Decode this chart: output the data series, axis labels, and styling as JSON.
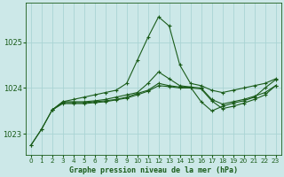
{
  "title": "Graphe pression niveau de la mer (hPa)",
  "bg_color": "#cce8e8",
  "grid_color": "#aad4d4",
  "line_color": "#1a5c1a",
  "text_color": "#1a5c1a",
  "xlim": [
    -0.5,
    23.5
  ],
  "ylim": [
    1022.55,
    1025.85
  ],
  "yticks": [
    1023,
    1024,
    1025
  ],
  "xticks": [
    0,
    1,
    2,
    3,
    4,
    5,
    6,
    7,
    8,
    9,
    10,
    11,
    12,
    13,
    14,
    15,
    16,
    17,
    18,
    19,
    20,
    21,
    22,
    23
  ],
  "series1_x": [
    0,
    1,
    2,
    3,
    4,
    5,
    6,
    7,
    8,
    9,
    10,
    11,
    12,
    13,
    14,
    15,
    16,
    17,
    18,
    19,
    20,
    21,
    22,
    23
  ],
  "series1_y": [
    1022.75,
    1023.1,
    1023.52,
    1023.7,
    1023.75,
    1023.8,
    1023.85,
    1023.9,
    1023.95,
    1024.1,
    1024.6,
    1025.1,
    1025.55,
    1025.35,
    1024.5,
    1024.1,
    1024.05,
    1023.95,
    1023.9,
    1023.95,
    1024.0,
    1024.05,
    1024.1,
    1024.2
  ],
  "series2_x": [
    0,
    1,
    2,
    3,
    4,
    5,
    6,
    7,
    8,
    9,
    10,
    11,
    12,
    13,
    14,
    15,
    16,
    17,
    18,
    19,
    20,
    21,
    22,
    23
  ],
  "series2_y": [
    1022.75,
    1023.1,
    1023.52,
    1023.7,
    1023.7,
    1023.7,
    1023.72,
    1023.75,
    1023.8,
    1023.85,
    1023.9,
    1024.1,
    1024.35,
    1024.2,
    1024.05,
    1024.02,
    1023.7,
    1023.5,
    1023.6,
    1023.67,
    1023.72,
    1023.8,
    1024.0,
    1024.18
  ],
  "series3_x": [
    2,
    3,
    4,
    5,
    6,
    7,
    8,
    9,
    10,
    11,
    12,
    13,
    14,
    15,
    16,
    17,
    18,
    19,
    20,
    21,
    22,
    23
  ],
  "series3_y": [
    1023.52,
    1023.68,
    1023.68,
    1023.68,
    1023.7,
    1023.72,
    1023.75,
    1023.8,
    1023.88,
    1023.95,
    1024.1,
    1024.05,
    1024.02,
    1024.02,
    1024.0,
    1023.75,
    1023.65,
    1023.7,
    1023.75,
    1023.82,
    1023.9,
    1024.05
  ],
  "series4_x": [
    2,
    3,
    4,
    5,
    6,
    7,
    8,
    9,
    10,
    11,
    12,
    13,
    14,
    15,
    16,
    17,
    18,
    19,
    20,
    21,
    22,
    23
  ],
  "series4_y": [
    1023.52,
    1023.66,
    1023.66,
    1023.66,
    1023.68,
    1023.7,
    1023.74,
    1023.78,
    1023.85,
    1023.93,
    1024.05,
    1024.03,
    1024.0,
    1024.0,
    1023.98,
    1023.72,
    1023.55,
    1023.6,
    1023.67,
    1023.75,
    1023.85,
    1024.05
  ]
}
